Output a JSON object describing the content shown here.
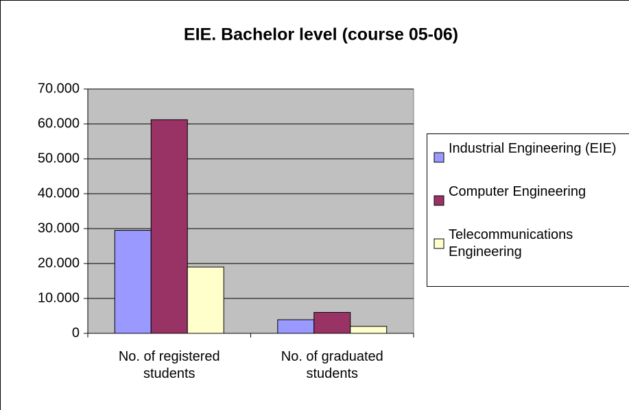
{
  "chart_data": {
    "type": "bar",
    "title": "EIE. Bachelor level (course 05-06)",
    "categories": [
      "No. of registered students",
      "No. of graduated students"
    ],
    "series": [
      {
        "name": "Industrial Engineering (EIE)",
        "color": "#9999ff",
        "values": [
          29500,
          3900
        ]
      },
      {
        "name": "Computer Engineering",
        "color": "#993366",
        "values": [
          61200,
          6000
        ]
      },
      {
        "name": "Telecommunications Engineering",
        "color": "#ffffcc",
        "values": [
          19000,
          2000
        ]
      }
    ],
    "ylim": [
      0,
      70000
    ],
    "yticks": [
      0,
      {
        "value": 10000,
        "label": "10.000"
      },
      {
        "value": 20000,
        "label": "20.000"
      },
      {
        "value": 30000,
        "label": "30.000"
      },
      {
        "value": 40000,
        "label": "40.000"
      },
      {
        "value": 50000,
        "label": "50.000"
      },
      {
        "value": 60000,
        "label": "60.000"
      },
      {
        "value": 70000,
        "label": "70.000"
      }
    ],
    "grid": true,
    "legend": "right"
  }
}
